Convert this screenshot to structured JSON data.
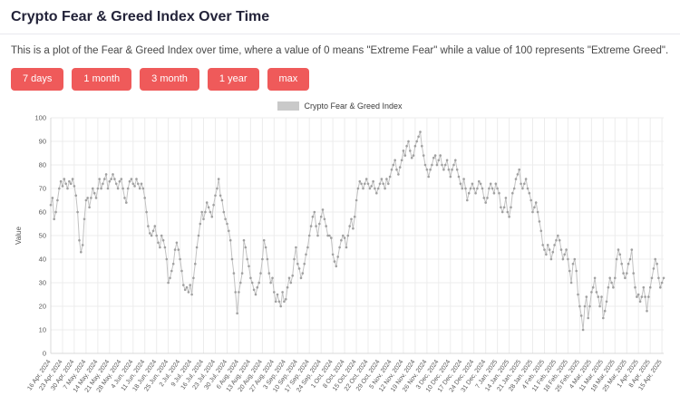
{
  "header": {
    "title": "Crypto Fear & Greed Index Over Time",
    "description": "This is a plot of the Fear & Greed Index over time, where a value of 0 means \"Extreme Fear\" while a value of 100 represents \"Extreme Greed\"."
  },
  "colors": {
    "button_bg": "#ef5a5a",
    "line": "#c2c2c2",
    "marker": "#a0a0a0",
    "legend_swatch": "#c9c9c9"
  },
  "buttons": [
    {
      "label": "7 days"
    },
    {
      "label": "1 month"
    },
    {
      "label": "3 month"
    },
    {
      "label": "1 year"
    },
    {
      "label": "max"
    }
  ],
  "chart_data": {
    "type": "line",
    "legend": "Crypto Fear & Greed Index",
    "ylabel": "Value",
    "ylim": [
      0,
      100
    ],
    "yticks": [
      0,
      10,
      20,
      30,
      40,
      50,
      60,
      70,
      80,
      90,
      100
    ],
    "x_start": "2024-04-16",
    "x_tick_every_days": 7,
    "x_tick_labels": [
      "16 Apr, 2024",
      "23 Apr, 2024",
      "30 Apr, 2024",
      "7 May, 2024",
      "14 May, 2024",
      "21 May, 2024",
      "28 May, 2024",
      "4 Jun, 2024",
      "11 Jun, 2024",
      "18 Jun, 2024",
      "25 Jun, 2024",
      "2 Jul, 2024",
      "9 Jul, 2024",
      "16 Jul, 2024",
      "23 Jul, 2024",
      "30 Jul, 2024",
      "6 Aug, 2024",
      "13 Aug, 2024",
      "20 Aug, 2024",
      "27 Aug, 2024",
      "3 Sep, 2024",
      "10 Sep, 2024",
      "17 Sep, 2024",
      "24 Sep, 2024",
      "1 Oct, 2024",
      "8 Oct, 2024",
      "15 Oct, 2024",
      "22 Oct, 2024",
      "29 Oct, 2024",
      "5 Nov, 2024",
      "12 Nov, 2024",
      "19 Nov, 2024",
      "26 Nov, 2024",
      "3 Dec, 2024",
      "10 Dec, 2024",
      "17 Dec, 2024",
      "24 Dec, 2024",
      "31 Dec, 2024",
      "7 Jan, 2025",
      "14 Jan, 2025",
      "21 Jan, 2025",
      "28 Jan, 2025",
      "4 Feb, 2025",
      "11 Feb, 2025",
      "18 Feb, 2025",
      "25 Feb, 2025",
      "4 Mar, 2025",
      "11 Mar, 2025",
      "18 Mar, 2025",
      "25 Mar, 2025",
      "1 Apr, 2025",
      "8 Apr, 2025",
      "15 Apr, 2025"
    ],
    "series": [
      {
        "name": "Crypto Fear & Greed Index",
        "values": [
          63,
          66,
          57,
          60,
          65,
          70,
          73,
          71,
          74,
          72,
          70,
          73,
          72,
          74,
          71,
          67,
          60,
          48,
          43,
          46,
          57,
          65,
          66,
          62,
          66,
          70,
          68,
          66,
          70,
          74,
          70,
          72,
          74,
          76,
          70,
          73,
          74,
          76,
          74,
          72,
          70,
          73,
          74,
          70,
          66,
          64,
          70,
          73,
          74,
          72,
          71,
          74,
          72,
          70,
          72,
          70,
          66,
          60,
          54,
          51,
          50,
          52,
          54,
          50,
          47,
          45,
          50,
          48,
          45,
          40,
          30,
          32,
          35,
          38,
          44,
          47,
          44,
          40,
          35,
          29,
          27,
          28,
          26,
          29,
          25,
          32,
          38,
          45,
          50,
          55,
          60,
          57,
          60,
          64,
          62,
          60,
          58,
          63,
          67,
          70,
          74,
          67,
          65,
          60,
          57,
          55,
          52,
          48,
          40,
          34,
          26,
          17,
          26,
          30,
          34,
          48,
          45,
          40,
          37,
          32,
          30,
          27,
          25,
          28,
          30,
          34,
          40,
          48,
          45,
          40,
          34,
          30,
          32,
          26,
          22,
          25,
          22,
          20,
          26,
          22,
          23,
          28,
          32,
          30,
          33,
          40,
          45,
          38,
          36,
          32,
          34,
          38,
          42,
          45,
          50,
          54,
          58,
          60,
          54,
          50,
          55,
          58,
          61,
          57,
          54,
          50,
          50,
          49,
          42,
          39,
          37,
          41,
          45,
          48,
          50,
          49,
          45,
          50,
          54,
          57,
          53,
          58,
          65,
          70,
          73,
          72,
          70,
          72,
          74,
          72,
          70,
          71,
          73,
          70,
          68,
          70,
          72,
          74,
          72,
          70,
          74,
          72,
          75,
          78,
          80,
          82,
          78,
          76,
          79,
          82,
          86,
          84,
          88,
          90,
          86,
          83,
          84,
          88,
          90,
          92,
          94,
          88,
          84,
          80,
          78,
          75,
          78,
          80,
          83,
          84,
          80,
          82,
          84,
          80,
          78,
          80,
          82,
          78,
          75,
          78,
          80,
          82,
          78,
          75,
          72,
          70,
          74,
          70,
          65,
          68,
          70,
          72,
          70,
          68,
          70,
          73,
          72,
          70,
          66,
          64,
          66,
          70,
          72,
          70,
          68,
          72,
          70,
          68,
          62,
          60,
          62,
          66,
          60,
          58,
          62,
          68,
          70,
          74,
          76,
          78,
          72,
          70,
          72,
          74,
          70,
          68,
          65,
          60,
          62,
          64,
          60,
          56,
          52,
          46,
          44,
          42,
          46,
          44,
          40,
          43,
          46,
          48,
          50,
          48,
          44,
          40,
          42,
          44,
          40,
          35,
          30,
          38,
          40,
          35,
          25,
          20,
          16,
          10,
          20,
          24,
          15,
          20,
          26,
          28,
          32,
          26,
          24,
          20,
          24,
          15,
          18,
          22,
          28,
          32,
          30,
          28,
          32,
          40,
          44,
          42,
          38,
          34,
          32,
          34,
          38,
          40,
          44,
          34,
          28,
          24,
          25,
          22,
          24,
          28,
          24,
          18,
          24,
          28,
          32,
          36,
          40,
          38,
          32,
          28,
          30,
          32
        ]
      }
    ]
  }
}
